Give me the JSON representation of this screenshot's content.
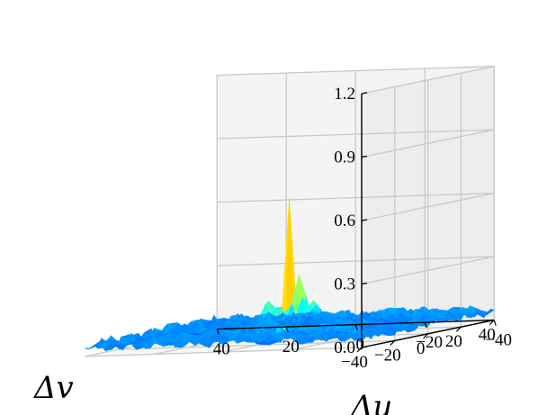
{
  "chart_data": {
    "type": "surface3d",
    "title": "",
    "xlabel": "Δu",
    "ylabel": "Δv",
    "zlabel": "",
    "x_ticks": [
      "40",
      "20",
      "0",
      "−20",
      "−40"
    ],
    "y_ticks": [
      "−40",
      "−20",
      "0",
      "20",
      "40"
    ],
    "z_ticks": [
      "0.0",
      "0.3",
      "0.6",
      "0.9",
      "1.2"
    ],
    "xlim": [
      -40,
      40
    ],
    "ylim": [
      -40,
      40
    ],
    "zlim": [
      0,
      1.2
    ],
    "grid": true,
    "colormap": "jet",
    "colors": {
      "low": "#1e6bff",
      "mid": "#3fe0d0",
      "high": "#ff3a1a"
    },
    "peak": {
      "x": 0,
      "y": 0,
      "z": 0.55
    },
    "background_level": 0.05,
    "side_lobes": [
      {
        "x": 0,
        "y": 6,
        "z": 0.2
      },
      {
        "x": 6,
        "y": 0,
        "z": 0.15
      },
      {
        "x": -6,
        "y": 2,
        "z": 0.13
      }
    ]
  }
}
